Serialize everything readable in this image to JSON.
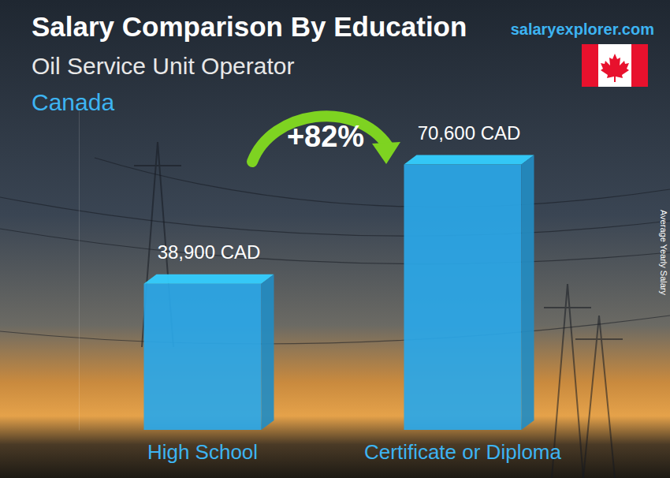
{
  "chart_data": {
    "type": "bar",
    "title": "Salary Comparison By Education",
    "subtitle": "Oil Service Unit Operator",
    "annotations": [
      "Canada",
      "+82%",
      "salaryexplorer.com"
    ],
    "ylabel": "Average Yearly Salary",
    "categories": [
      "High School",
      "Certificate or Diploma"
    ],
    "values": [
      38900,
      70600
    ],
    "value_labels": [
      "38,900 CAD",
      "70,600 CAD"
    ],
    "data_labels": true,
    "color": "#2aa7e8",
    "ylim": [
      0,
      85000
    ],
    "yticks": [],
    "tick_labels": "x",
    "grid": false
  }
}
